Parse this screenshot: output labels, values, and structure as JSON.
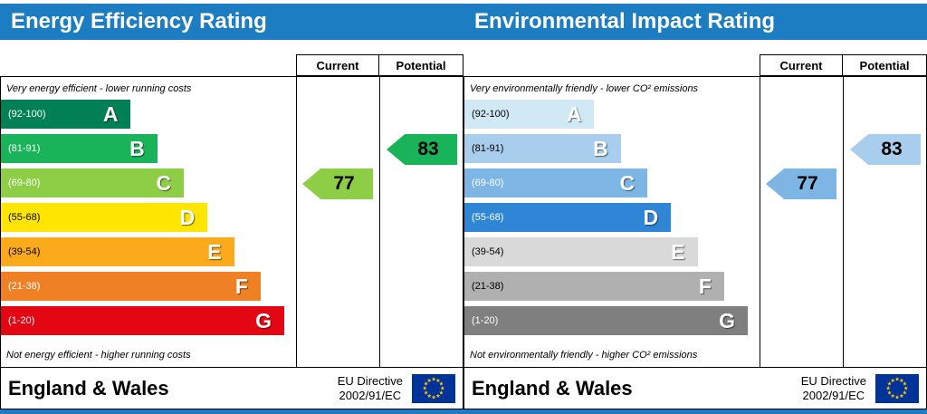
{
  "colors": {
    "header_bg": "#1d7dc2",
    "eu_flag_bg": "#003399",
    "eu_star": "#ffcc00",
    "border": "#000000"
  },
  "panels": [
    {
      "title": "Energy Efficiency Rating",
      "columns": {
        "current": "Current",
        "potential": "Potential"
      },
      "top_caption": "Very energy efficient - lower running costs",
      "bottom_caption": "Not energy efficient - higher running costs",
      "bands": [
        {
          "letter": "A",
          "range": "(92-100)",
          "color": "#008054",
          "range_color": "#ffffff",
          "width_pct": 44
        },
        {
          "letter": "B",
          "range": "(81-91)",
          "color": "#19b459",
          "range_color": "#ffffff",
          "width_pct": 53
        },
        {
          "letter": "C",
          "range": "(69-80)",
          "color": "#8dce46",
          "range_color": "#ffffff",
          "width_pct": 62
        },
        {
          "letter": "D",
          "range": "(55-68)",
          "color": "#ffe500",
          "range_color": "#000000",
          "width_pct": 70
        },
        {
          "letter": "E",
          "range": "(39-54)",
          "color": "#fbaa1c",
          "range_color": "#000000",
          "width_pct": 79
        },
        {
          "letter": "F",
          "range": "(21-38)",
          "color": "#ef8023",
          "range_color": "#ffffff",
          "width_pct": 88
        },
        {
          "letter": "G",
          "range": "(1-20)",
          "color": "#e30613",
          "range_color": "#ffffff",
          "width_pct": 96
        }
      ],
      "current": {
        "value": "77",
        "band": "C",
        "row": 2,
        "color": "#8dce46"
      },
      "potential": {
        "value": "83",
        "band": "B",
        "row": 1,
        "color": "#19b459"
      },
      "footer": {
        "region": "England & Wales",
        "directive_line1": "EU Directive",
        "directive_line2": "2002/91/EC"
      }
    },
    {
      "title": "Environmental Impact Rating",
      "columns": {
        "current": "Current",
        "potential": "Potential"
      },
      "top_caption": "Very environmentally friendly - lower CO² emissions",
      "bottom_caption": "Not environmentally friendly - higher CO² emissions",
      "bands": [
        {
          "letter": "A",
          "range": "(92-100)",
          "color": "#d1e8f5",
          "range_color": "#000000",
          "width_pct": 44
        },
        {
          "letter": "B",
          "range": "(81-91)",
          "color": "#a9cdec",
          "range_color": "#000000",
          "width_pct": 53
        },
        {
          "letter": "C",
          "range": "(69-80)",
          "color": "#7db6e4",
          "range_color": "#ffffff",
          "width_pct": 62
        },
        {
          "letter": "D",
          "range": "(55-68)",
          "color": "#2f86d6",
          "range_color": "#ffffff",
          "width_pct": 70
        },
        {
          "letter": "E",
          "range": "(39-54)",
          "color": "#d9d9d9",
          "range_color": "#000000",
          "width_pct": 79
        },
        {
          "letter": "F",
          "range": "(21-38)",
          "color": "#b0b0b0",
          "range_color": "#000000",
          "width_pct": 88
        },
        {
          "letter": "G",
          "range": "(1-20)",
          "color": "#7f7f7f",
          "range_color": "#ffffff",
          "width_pct": 96
        }
      ],
      "current": {
        "value": "77",
        "band": "C",
        "row": 2,
        "color": "#7db6e4"
      },
      "potential": {
        "value": "83",
        "band": "B",
        "row": 1,
        "color": "#a9cdec"
      },
      "footer": {
        "region": "England & Wales",
        "directive_line1": "EU Directive",
        "directive_line2": "2002/91/EC"
      }
    }
  ],
  "chart_data": [
    {
      "type": "bar",
      "title": "Energy Efficiency Rating",
      "categories": [
        "A",
        "B",
        "C",
        "D",
        "E",
        "F",
        "G"
      ],
      "band_ranges": [
        "92-100",
        "81-91",
        "69-80",
        "55-68",
        "39-54",
        "21-38",
        "1-20"
      ],
      "series": [
        {
          "name": "Current",
          "value": 77,
          "band": "C"
        },
        {
          "name": "Potential",
          "value": 83,
          "band": "B"
        }
      ],
      "xlabel": "",
      "ylabel": "",
      "scale": [
        1,
        100
      ],
      "legend_position": "none",
      "grid": false
    },
    {
      "type": "bar",
      "title": "Environmental Impact Rating",
      "categories": [
        "A",
        "B",
        "C",
        "D",
        "E",
        "F",
        "G"
      ],
      "band_ranges": [
        "92-100",
        "81-91",
        "69-80",
        "55-68",
        "39-54",
        "21-38",
        "1-20"
      ],
      "series": [
        {
          "name": "Current",
          "value": 77,
          "band": "C"
        },
        {
          "name": "Potential",
          "value": 83,
          "band": "B"
        }
      ],
      "xlabel": "",
      "ylabel": "",
      "scale": [
        1,
        100
      ],
      "legend_position": "none",
      "grid": false
    }
  ]
}
